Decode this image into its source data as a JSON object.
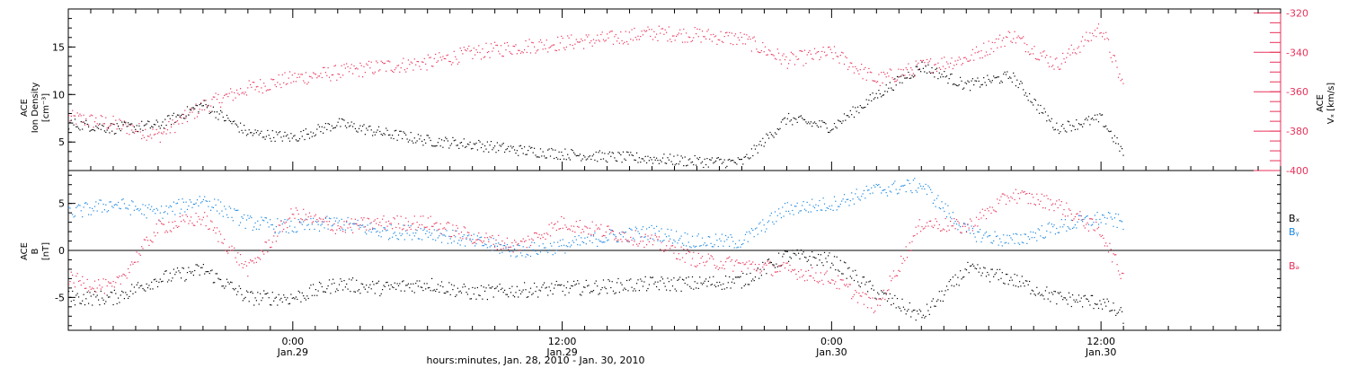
{
  "chart_data": [
    {
      "type": "scatter",
      "panel": "top",
      "ylabel_left": [
        "ACE",
        "Ion Density",
        "[cm⁻³]"
      ],
      "ylabel_right": [
        "ACE",
        "Vₓ [km/s]"
      ],
      "ylim_left": [
        2,
        19
      ],
      "ylim_right": [
        -400,
        -318
      ],
      "yticks_left": [
        "5",
        "10",
        "15"
      ],
      "yticks_right": [
        "-400",
        "-380",
        "-360",
        "-340",
        "-320"
      ],
      "x_hours": [
        -10,
        -8,
        -6,
        -4,
        -2,
        0,
        2,
        4,
        6,
        8,
        10,
        12,
        14,
        16,
        18,
        20,
        22,
        24,
        26,
        28,
        30,
        32,
        34,
        36,
        37
      ],
      "series": [
        {
          "color": "#000000",
          "axis": "left",
          "values": [
            7,
            6.5,
            6.8,
            9,
            6,
            5.5,
            7,
            6,
            5.2,
            4.8,
            4.2,
            3.8,
            3.5,
            3.3,
            3.0,
            2.9,
            7.5,
            6.6,
            10,
            13,
            11,
            12,
            6.5,
            7.5,
            3.8
          ]
        },
        {
          "color": "#e8325a",
          "axis": "right",
          "values": [
            -373,
            -376,
            -382,
            -367,
            -358,
            -353,
            -350,
            -347,
            -345,
            -340,
            -337,
            -335,
            -333,
            -330,
            -331,
            -333,
            -344,
            -340,
            -354,
            -347,
            -343,
            -331,
            -346,
            -327,
            -358
          ]
        }
      ]
    },
    {
      "type": "scatter",
      "panel": "bottom",
      "ylabel_left": [
        "ACE",
        "B",
        "[nT]"
      ],
      "ylim": [
        -8.5,
        8.5
      ],
      "yticks": [
        "-5",
        "0",
        "5"
      ],
      "legend": [
        "Bₓ",
        "Bᵧ",
        "Bₔ"
      ],
      "x_hours": [
        -10,
        -8,
        -6,
        -4,
        -2,
        0,
        2,
        4,
        6,
        8,
        10,
        12,
        14,
        16,
        18,
        20,
        22,
        24,
        26,
        28,
        30,
        32,
        34,
        36,
        37
      ],
      "series": [
        {
          "color": "#000000",
          "values": [
            -5,
            -5,
            -3,
            -2,
            -5,
            -5,
            -3.5,
            -4,
            -3.5,
            -4.5,
            -4.2,
            -4,
            -3.8,
            -3.5,
            -3.5,
            -3.2,
            -0.5,
            -1,
            -4.5,
            -7,
            -2,
            -3,
            -5,
            -5.5,
            -7
          ]
        },
        {
          "color": "#1a86e0",
          "values": [
            4,
            5,
            4,
            5.5,
            3,
            2.5,
            3,
            2,
            2,
            1,
            0,
            0.5,
            1.5,
            2,
            1,
            1,
            4.5,
            5,
            6.5,
            7,
            2,
            1,
            2.5,
            3.5,
            3
          ]
        },
        {
          "color": "#e8325a",
          "values": [
            -3,
            -4,
            2.5,
            3.5,
            -2,
            4,
            2.5,
            3,
            3,
            1.5,
            0.5,
            3,
            2,
            1,
            -1,
            -1.5,
            -2,
            -3,
            -6,
            3,
            2.5,
            6,
            5,
            2,
            -3
          ]
        }
      ]
    }
  ],
  "xaxis": {
    "ticks": [
      {
        "label": "0:00",
        "date": "Jan.29",
        "hour": 0
      },
      {
        "label": "12:00",
        "date": "Jan.29",
        "hour": 12
      },
      {
        "label": "0:00",
        "date": "Jan.30",
        "hour": 24
      },
      {
        "label": "12:00",
        "date": "Jan.30",
        "hour": 36
      }
    ],
    "range_hours": [
      -10,
      44
    ],
    "title": "hours:minutes, Jan. 28, 2010 - Jan. 30, 2010"
  }
}
